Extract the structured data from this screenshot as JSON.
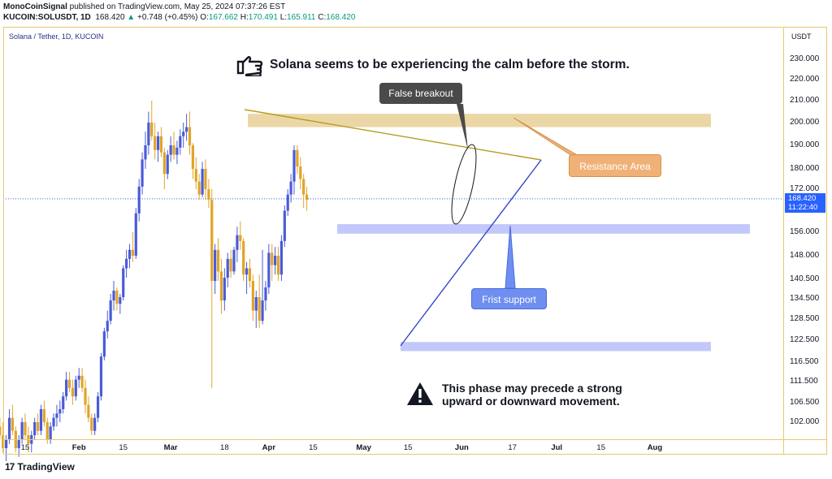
{
  "header": {
    "publisher": "MonoCoinSignal",
    "published_text": "published on TradingView.com, May 25, 2024 07:37:26 EST",
    "symbol": "KUCOIN:SOLUSDT, 1D",
    "last": "168.420",
    "change_arrow": "▲",
    "change": "+0.748 (+0.45%)",
    "open_label": "O:",
    "open": "167.662",
    "high_label": "H:",
    "high": "170.491",
    "low_label": "L:",
    "low": "165.911",
    "close_label": "C:",
    "close": "168.420"
  },
  "legend": "Solana / Tether, 1D, KUCOIN",
  "currency": "USDT",
  "price_tag": {
    "price": "168.420",
    "countdown": "11:22:40"
  },
  "annotations": {
    "headline": "Solana seems to be experiencing the calm before the storm.",
    "headline_icon": "pointing-hand-icon",
    "false_breakout": "False breakout",
    "resistance": "Resistance Area",
    "support": "Frist support",
    "phase_line1": "This phase may precede a strong",
    "phase_line2": "upward or downward movement.",
    "phase_icon": "warning-icon"
  },
  "footer": {
    "brand": "TradingView",
    "logo_text": "17"
  },
  "colors": {
    "bull": "#4a5bd8",
    "bear": "#e0a528",
    "accent": "#2962ff",
    "resistance_zone": "#e8cf96",
    "support_zone": "#b9befa",
    "trend_upper": "#b99b1c",
    "trend_lower": "#3548c8",
    "callout_dark": "#4a4a4a",
    "callout_orange": "#f0b177",
    "callout_blue": "#6f8ff0"
  },
  "chart_data": {
    "type": "candlestick",
    "title": "Solana / Tether, 1D, KUCOIN",
    "y_axis_labels": [
      "230.000",
      "220.000",
      "210.000",
      "200.000",
      "190.000",
      "180.000",
      "172.000",
      "156.000",
      "148.000",
      "140.500",
      "134.500",
      "128.500",
      "122.500",
      "116.500",
      "111.500",
      "106.500",
      "102.000"
    ],
    "y_axis_values": [
      230,
      220,
      210,
      200,
      190,
      180,
      172,
      156,
      148,
      140.5,
      134.5,
      128.5,
      122.5,
      116.5,
      111.5,
      106.5,
      102
    ],
    "x_axis_labels": [
      {
        "text": "15",
        "date": "2024-01-15",
        "bold": false
      },
      {
        "text": "Feb",
        "date": "2024-02-01",
        "bold": true
      },
      {
        "text": "15",
        "date": "2024-02-15",
        "bold": false
      },
      {
        "text": "Mar",
        "date": "2024-03-01",
        "bold": true
      },
      {
        "text": "18",
        "date": "2024-03-18",
        "bold": false
      },
      {
        "text": "Apr",
        "date": "2024-04-01",
        "bold": true
      },
      {
        "text": "15",
        "date": "2024-04-15",
        "bold": false
      },
      {
        "text": "May",
        "date": "2024-05-01",
        "bold": true
      },
      {
        "text": "15",
        "date": "2024-05-15",
        "bold": false
      },
      {
        "text": "Jun",
        "date": "2024-06-01",
        "bold": true
      },
      {
        "text": "17",
        "date": "2024-06-17",
        "bold": false
      },
      {
        "text": "Jul",
        "date": "2024-07-01",
        "bold": true
      },
      {
        "text": "15",
        "date": "2024-07-15",
        "bold": false
      },
      {
        "text": "Aug",
        "date": "2024-08-01",
        "bold": true
      }
    ],
    "start_date": "2024-01-07",
    "candles": [
      [
        101,
        103,
        98,
        99
      ],
      [
        99,
        102,
        95,
        96
      ],
      [
        96,
        99,
        93,
        98
      ],
      [
        98,
        105,
        97,
        103
      ],
      [
        103,
        106,
        99,
        100
      ],
      [
        100,
        101,
        95,
        96
      ],
      [
        96,
        99,
        94,
        98
      ],
      [
        98,
        103,
        97,
        102
      ],
      [
        102,
        104,
        98,
        99
      ],
      [
        99,
        101,
        95,
        97
      ],
      [
        97,
        100,
        95,
        99
      ],
      [
        99,
        103,
        98,
        102
      ],
      [
        102,
        104,
        99,
        100
      ],
      [
        100,
        106,
        99,
        105
      ],
      [
        105,
        107,
        101,
        102
      ],
      [
        102,
        103,
        97,
        98
      ],
      [
        98,
        102,
        97,
        101
      ],
      [
        101,
        104,
        100,
        103
      ],
      [
        103,
        106,
        101,
        104
      ],
      [
        104,
        107,
        102,
        105
      ],
      [
        105,
        109,
        104,
        108
      ],
      [
        108,
        114,
        107,
        112
      ],
      [
        112,
        114,
        109,
        110
      ],
      [
        110,
        112,
        106,
        108
      ],
      [
        108,
        113,
        107,
        112
      ],
      [
        112,
        115,
        110,
        113
      ],
      [
        113,
        115,
        109,
        110
      ],
      [
        110,
        112,
        104,
        106
      ],
      [
        106,
        108,
        102,
        103
      ],
      [
        103,
        104,
        99,
        100
      ],
      [
        100,
        104,
        99,
        103
      ],
      [
        103,
        109,
        102,
        108
      ],
      [
        108,
        119,
        107,
        118
      ],
      [
        118,
        126,
        117,
        125
      ],
      [
        125,
        131,
        123,
        128
      ],
      [
        128,
        136,
        127,
        134
      ],
      [
        134,
        140,
        131,
        137
      ],
      [
        137,
        138,
        131,
        133
      ],
      [
        133,
        136,
        130,
        135
      ],
      [
        135,
        145,
        134,
        144
      ],
      [
        144,
        150,
        141,
        147
      ],
      [
        147,
        152,
        144,
        150
      ],
      [
        150,
        156,
        146,
        148
      ],
      [
        148,
        165,
        147,
        163
      ],
      [
        163,
        176,
        160,
        173
      ],
      [
        173,
        187,
        170,
        184
      ],
      [
        184,
        196,
        180,
        190
      ],
      [
        190,
        205,
        186,
        200
      ],
      [
        200,
        210,
        192,
        194
      ],
      [
        194,
        200,
        184,
        188
      ],
      [
        188,
        196,
        183,
        194
      ],
      [
        194,
        198,
        185,
        187
      ],
      [
        187,
        189,
        172,
        178
      ],
      [
        178,
        188,
        176,
        186
      ],
      [
        186,
        194,
        183,
        190
      ],
      [
        190,
        196,
        184,
        186
      ],
      [
        186,
        192,
        182,
        189
      ],
      [
        189,
        197,
        186,
        194
      ],
      [
        194,
        200,
        189,
        196
      ],
      [
        196,
        204,
        192,
        198
      ],
      [
        198,
        205,
        186,
        190
      ],
      [
        190,
        191,
        176,
        180
      ],
      [
        180,
        185,
        172,
        175
      ],
      [
        175,
        178,
        168,
        170
      ],
      [
        170,
        183,
        169,
        180
      ],
      [
        180,
        184,
        168,
        172
      ],
      [
        172,
        176,
        165,
        168
      ],
      [
        168,
        172,
        110,
        140
      ],
      [
        140,
        152,
        136,
        150
      ],
      [
        150,
        154,
        140,
        143
      ],
      [
        143,
        147,
        130,
        134
      ],
      [
        134,
        144,
        131,
        141
      ],
      [
        141,
        149,
        138,
        147
      ],
      [
        147,
        150,
        141,
        143
      ],
      [
        143,
        151,
        142,
        150
      ],
      [
        150,
        158,
        146,
        155
      ],
      [
        155,
        160,
        150,
        153
      ],
      [
        153,
        154,
        140,
        142
      ],
      [
        142,
        146,
        136,
        144
      ],
      [
        144,
        147,
        138,
        140
      ],
      [
        140,
        142,
        128,
        131
      ],
      [
        131,
        137,
        126,
        135
      ],
      [
        135,
        142,
        126,
        128
      ],
      [
        128,
        150,
        127,
        134
      ],
      [
        134,
        140,
        131,
        138
      ],
      [
        138,
        152,
        136,
        149
      ],
      [
        149,
        152,
        140,
        145
      ],
      [
        145,
        151,
        142,
        148
      ],
      [
        148,
        151,
        140,
        142
      ],
      [
        142,
        155,
        140,
        153
      ],
      [
        153,
        166,
        151,
        164
      ],
      [
        164,
        172,
        162,
        170
      ],
      [
        170,
        178,
        167,
        175
      ],
      [
        175,
        190,
        170,
        188
      ],
      [
        188,
        190,
        178,
        181
      ],
      [
        181,
        185,
        172,
        176
      ],
      [
        176,
        178,
        165,
        170
      ],
      [
        170,
        173,
        164,
        168
      ]
    ],
    "resistance_zone": [
      198,
      204
    ],
    "support_zone": [
      155.5,
      159
    ],
    "lower_support_zone": [
      119.5,
      122
    ]
  }
}
